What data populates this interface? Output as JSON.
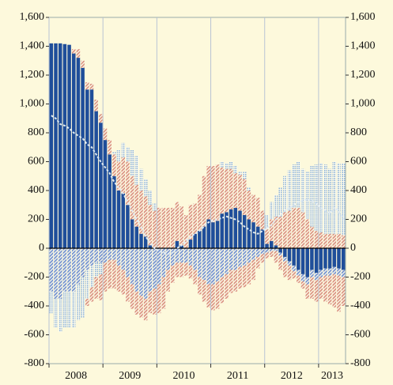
{
  "chart_data": {
    "type": "bar",
    "stacked": true,
    "categories": [
      null,
      null,
      null,
      null,
      null,
      null,
      "2008",
      null,
      null,
      null,
      null,
      null,
      null,
      null,
      null,
      null,
      null,
      null,
      "2009",
      null,
      null,
      null,
      null,
      null,
      null,
      null,
      null,
      null,
      null,
      null,
      "2010",
      null,
      null,
      null,
      null,
      null,
      null,
      null,
      null,
      null,
      null,
      null,
      "2011",
      null,
      null,
      null,
      null,
      null,
      null,
      null,
      null,
      null,
      null,
      null,
      "2012",
      null,
      null,
      null,
      null,
      null,
      null,
      null,
      null,
      "2013",
      null,
      null
    ],
    "ylim": [
      -800,
      1600
    ],
    "yticks": [
      -800,
      -600,
      -400,
      -200,
      0,
      200,
      400,
      600,
      800,
      {
        "value": 1000,
        "label": "1,000"
      },
      {
        "value": 1200,
        "label": "1,200"
      },
      {
        "value": 1400,
        "label": "1,400"
      },
      {
        "value": 1600,
        "label": "1,600"
      }
    ],
    "y2lim": [
      -800,
      1600
    ],
    "y2ticks": [
      -800,
      -600,
      -400,
      -200,
      0,
      200,
      400,
      600,
      800,
      {
        "value": 1000,
        "label": "1,000"
      },
      {
        "value": 1200,
        "label": "1,200"
      },
      {
        "value": 1400,
        "label": "1,400"
      },
      {
        "value": 1600,
        "label": "1,600"
      }
    ],
    "series": [
      {
        "color": "#1f4e9a",
        "pattern": "solid",
        "values": [
          1420,
          1420,
          1420,
          1415,
          1410,
          1350,
          1320,
          1250,
          1100,
          1100,
          950,
          870,
          750,
          650,
          500,
          400,
          380,
          300,
          200,
          150,
          100,
          80,
          20,
          0,
          0,
          0,
          0,
          0,
          50,
          20,
          0,
          60,
          100,
          120,
          150,
          200,
          180,
          190,
          240,
          250,
          270,
          280,
          260,
          230,
          200,
          180,
          150,
          130,
          30,
          50,
          20,
          -30,
          -60,
          -90,
          -120,
          -150,
          -180,
          -200,
          -150,
          -170,
          -150,
          -140,
          -140,
          -130,
          -140,
          -150
        ]
      },
      {
        "color": "#d9907e",
        "pattern": "hatch",
        "values": [
          0,
          0,
          0,
          0,
          0,
          30,
          60,
          50,
          50,
          40,
          80,
          60,
          80,
          100,
          150,
          200,
          250,
          300,
          300,
          290,
          300,
          280,
          280,
          260,
          280,
          280,
          280,
          280,
          270,
          270,
          230,
          240,
          210,
          250,
          350,
          370,
          390,
          390,
          320,
          300,
          280,
          240,
          250,
          250,
          200,
          190,
          200,
          130,
          100,
          150,
          200,
          220,
          250,
          260,
          280,
          280,
          250,
          200,
          150,
          120,
          110,
          100,
          100,
          100,
          100,
          90
        ]
      },
      {
        "color": "#86aed6",
        "pattern": "dots",
        "values": [
          0,
          0,
          0,
          0,
          0,
          0,
          0,
          0,
          0,
          0,
          0,
          0,
          0,
          0,
          20,
          80,
          100,
          100,
          180,
          200,
          150,
          120,
          100,
          50,
          0,
          0,
          0,
          0,
          0,
          0,
          0,
          0,
          0,
          0,
          0,
          0,
          0,
          0,
          40,
          40,
          50,
          50,
          20,
          50,
          20,
          0,
          0,
          0,
          100,
          120,
          150,
          200,
          250,
          280,
          300,
          320,
          300,
          330,
          420,
          460,
          480,
          480,
          450,
          500,
          490,
          500
        ]
      },
      {
        "color": "#6f8fd0",
        "pattern": "hatch",
        "values": [
          -300,
          -350,
          -350,
          -300,
          -300,
          -300,
          -250,
          -200,
          -150,
          -120,
          -100,
          -100,
          -100,
          -80,
          -80,
          -120,
          -150,
          -200,
          -250,
          -300,
          -330,
          -350,
          -300,
          -280,
          -250,
          -200,
          -150,
          -120,
          -100,
          -100,
          -100,
          -120,
          -150,
          -200,
          -220,
          -250,
          -250,
          -230,
          -200,
          -180,
          -150,
          -150,
          -130,
          -120,
          -100,
          -80,
          -60,
          -40,
          -30,
          -20,
          -20,
          -20,
          -30,
          -30,
          -40,
          -40,
          -50,
          -50,
          -50,
          -50,
          -50,
          -50,
          -50,
          -50,
          -50,
          -50
        ]
      },
      {
        "color": "#86aed6",
        "pattern": "dots",
        "values": [
          -150,
          -200,
          -230,
          -250,
          -250,
          -250,
          -250,
          -280,
          -200,
          -150,
          -100,
          -80,
          0,
          0,
          0,
          0,
          0,
          0,
          0,
          0,
          0,
          0,
          0,
          0,
          0,
          0,
          0,
          0,
          0,
          0,
          0,
          0,
          0,
          0,
          0,
          0,
          0,
          0,
          0,
          0,
          0,
          0,
          0,
          0,
          0,
          0,
          0,
          0,
          0,
          0,
          0,
          0,
          0,
          0,
          0,
          0,
          0,
          0,
          0,
          0,
          0,
          0,
          0,
          0,
          0,
          0
        ]
      },
      {
        "color": "#d9907e",
        "pattern": "hatch",
        "values": [
          0,
          0,
          0,
          0,
          0,
          0,
          0,
          0,
          -50,
          -100,
          -150,
          -180,
          -200,
          -200,
          -200,
          -180,
          -170,
          -170,
          -170,
          -160,
          -150,
          -150,
          -150,
          -180,
          -200,
          -220,
          -150,
          -120,
          -100,
          -100,
          -90,
          -90,
          -100,
          -120,
          -150,
          -160,
          -180,
          -190,
          -180,
          -170,
          -160,
          -150,
          -150,
          -150,
          -150,
          -140,
          -80,
          -60,
          -40,
          -40,
          -80,
          -100,
          -110,
          -100,
          -50,
          -50,
          -50,
          -100,
          -150,
          -150,
          -150,
          -180,
          -200,
          -230,
          -250,
          -200
        ]
      }
    ],
    "line": {
      "color": "#dfeaf2",
      "dashed": true,
      "values": [
        920,
        900,
        860,
        850,
        830,
        800,
        780,
        760,
        720,
        700,
        650,
        600,
        560,
        520,
        460,
        420,
        380,
        320,
        260,
        200,
        150,
        80,
        40,
        0,
        -20,
        -30,
        -40,
        -30,
        0,
        20,
        50,
        80,
        100,
        120,
        150,
        180,
        190,
        200,
        210,
        220,
        210,
        200,
        180,
        150,
        130,
        110,
        100,
        120,
        140,
        160,
        200,
        230,
        260,
        280,
        300,
        320,
        330,
        340,
        330,
        310,
        280,
        260,
        240,
        280,
        260,
        200
      ]
    }
  }
}
